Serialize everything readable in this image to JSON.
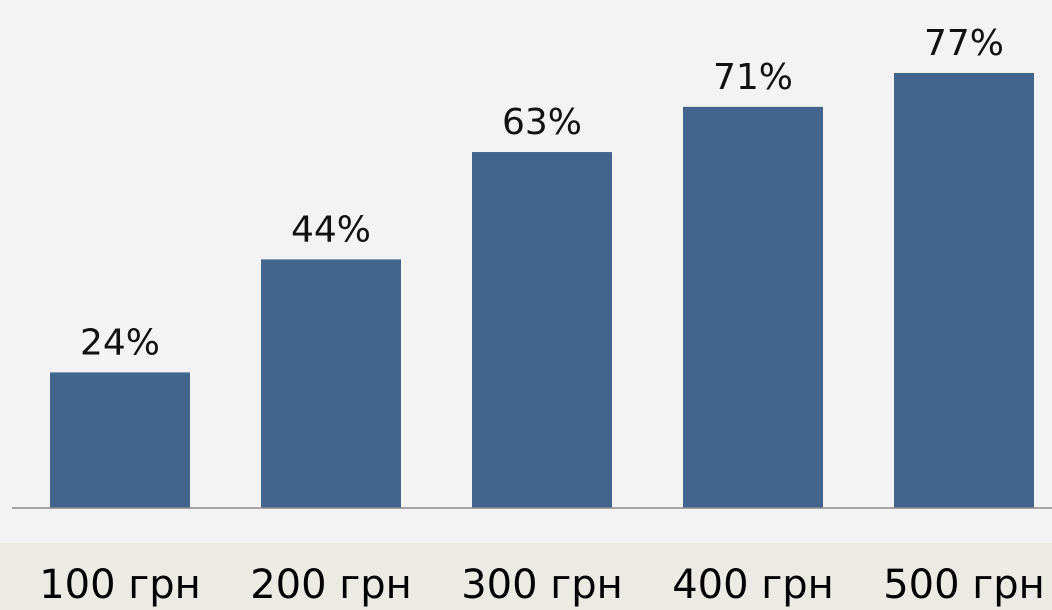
{
  "chart_data": {
    "type": "bar",
    "categories": [
      "100 грн",
      "200 грн",
      "300 грн",
      "400 грн",
      "500 грн"
    ],
    "values": [
      24,
      44,
      63,
      71,
      77
    ],
    "value_labels": [
      "24%",
      "44%",
      "63%",
      "71%",
      "77%"
    ],
    "title": "",
    "xlabel": "",
    "ylabel": "",
    "ylim": [
      0,
      80
    ],
    "grid": false,
    "legend": "none",
    "colors": {
      "bar": "#43658d",
      "plot_background": "#f2f3f2",
      "category_band": "#ebebe3",
      "axis_line": "#8a8a8a"
    }
  }
}
